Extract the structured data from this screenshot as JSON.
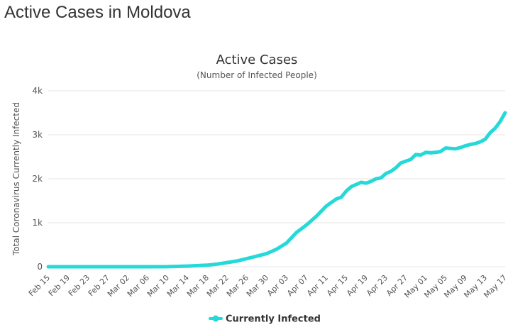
{
  "page": {
    "heading": "Active Cases in Moldova"
  },
  "colors": {
    "series": "#25d9d9",
    "grid": "#e6e6e6",
    "axis_text": "#555555",
    "title_text": "#333333"
  },
  "chart_data": {
    "type": "line",
    "title": "Active Cases",
    "subtitle": "(Number of Infected People)",
    "xlabel": "",
    "ylabel": "Total Coronavirus Currently Infected",
    "ylim": [
      0,
      4000
    ],
    "yticks": [
      0,
      1000,
      2000,
      3000,
      4000
    ],
    "ytick_labels": [
      "0",
      "1k",
      "2k",
      "3k",
      "4k"
    ],
    "grid": true,
    "legend_position": "bottom-center",
    "xtick_labels": [
      "Feb 15",
      "Feb 19",
      "Feb 23",
      "Feb 27",
      "Mar 02",
      "Mar 06",
      "Mar 10",
      "Mar 14",
      "Mar 18",
      "Mar 22",
      "Mar 26",
      "Mar 30",
      "Apr 03",
      "Apr 07",
      "Apr 11",
      "Apr 15",
      "Apr 19",
      "Apr 23",
      "Apr 27",
      "May 01",
      "May 05",
      "May 09",
      "May 13",
      "May 17"
    ],
    "series": [
      {
        "name": "Currently Infected",
        "points": [
          [
            "Feb 15",
            0
          ],
          [
            "Feb 19",
            0
          ],
          [
            "Feb 23",
            0
          ],
          [
            "Feb 27",
            0
          ],
          [
            "Mar 02",
            0
          ],
          [
            "Mar 06",
            0
          ],
          [
            "Mar 10",
            2
          ],
          [
            "Mar 14",
            15
          ],
          [
            "Mar 18",
            35
          ],
          [
            "Mar 20",
            60
          ],
          [
            "Mar 22",
            95
          ],
          [
            "Mar 24",
            130
          ],
          [
            "Mar 26",
            185
          ],
          [
            "Mar 28",
            240
          ],
          [
            "Mar 30",
            300
          ],
          [
            "Apr 01",
            400
          ],
          [
            "Apr 03",
            540
          ],
          [
            "Apr 05",
            780
          ],
          [
            "Apr 07",
            950
          ],
          [
            "Apr 09",
            1150
          ],
          [
            "Apr 11",
            1380
          ],
          [
            "Apr 13",
            1540
          ],
          [
            "Apr 14",
            1580
          ],
          [
            "Apr 15",
            1720
          ],
          [
            "Apr 16",
            1820
          ],
          [
            "Apr 17",
            1870
          ],
          [
            "Apr 18",
            1920
          ],
          [
            "Apr 19",
            1900
          ],
          [
            "Apr 20",
            1940
          ],
          [
            "Apr 21",
            2000
          ],
          [
            "Apr 22",
            2020
          ],
          [
            "Apr 23",
            2120
          ],
          [
            "Apr 24",
            2170
          ],
          [
            "Apr 25",
            2250
          ],
          [
            "Apr 26",
            2360
          ],
          [
            "Apr 27",
            2400
          ],
          [
            "Apr 28",
            2440
          ],
          [
            "Apr 29",
            2550
          ],
          [
            "Apr 30",
            2540
          ],
          [
            "May 01",
            2600
          ],
          [
            "May 02",
            2590
          ],
          [
            "May 03",
            2600
          ],
          [
            "May 04",
            2620
          ],
          [
            "May 05",
            2700
          ],
          [
            "May 06",
            2690
          ],
          [
            "May 07",
            2680
          ],
          [
            "May 08",
            2710
          ],
          [
            "May 09",
            2750
          ],
          [
            "May 10",
            2780
          ],
          [
            "May 11",
            2800
          ],
          [
            "May 12",
            2840
          ],
          [
            "May 13",
            2900
          ],
          [
            "May 14",
            3050
          ],
          [
            "May 15",
            3150
          ],
          [
            "May 16",
            3300
          ],
          [
            "May 17",
            3500
          ]
        ]
      }
    ]
  }
}
